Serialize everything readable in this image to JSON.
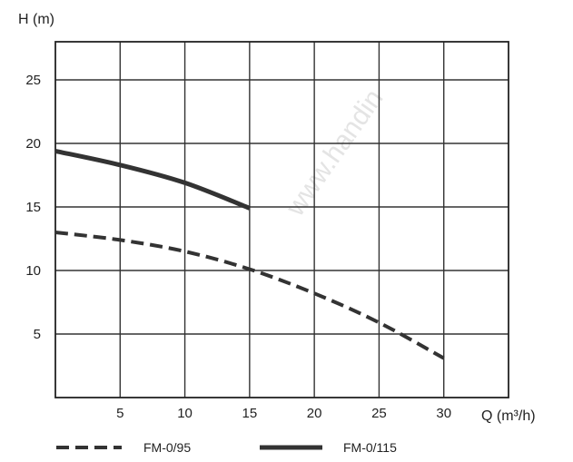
{
  "watermark": "www.handin",
  "chart_data": {
    "type": "line",
    "xlabel": "Q (m³/h)",
    "ylabel": "H (m)",
    "xlim": [
      0,
      35
    ],
    "ylim": [
      0,
      28
    ],
    "x_ticks": [
      5,
      10,
      15,
      20,
      25,
      30
    ],
    "y_ticks": [
      5,
      10,
      15,
      20,
      25
    ],
    "grid": true,
    "legend_position": "bottom",
    "series": [
      {
        "name": "FM-0/95",
        "style": "dashed",
        "color": "#333333",
        "x": [
          0,
          5,
          10,
          15,
          20,
          25,
          30
        ],
        "y": [
          13.0,
          12.4,
          11.5,
          10.1,
          8.2,
          5.9,
          3.1
        ]
      },
      {
        "name": "FM-0/115",
        "style": "solid",
        "color": "#333333",
        "x": [
          0,
          5,
          10,
          15
        ],
        "y": [
          19.4,
          18.3,
          16.9,
          14.9
        ]
      }
    ]
  }
}
